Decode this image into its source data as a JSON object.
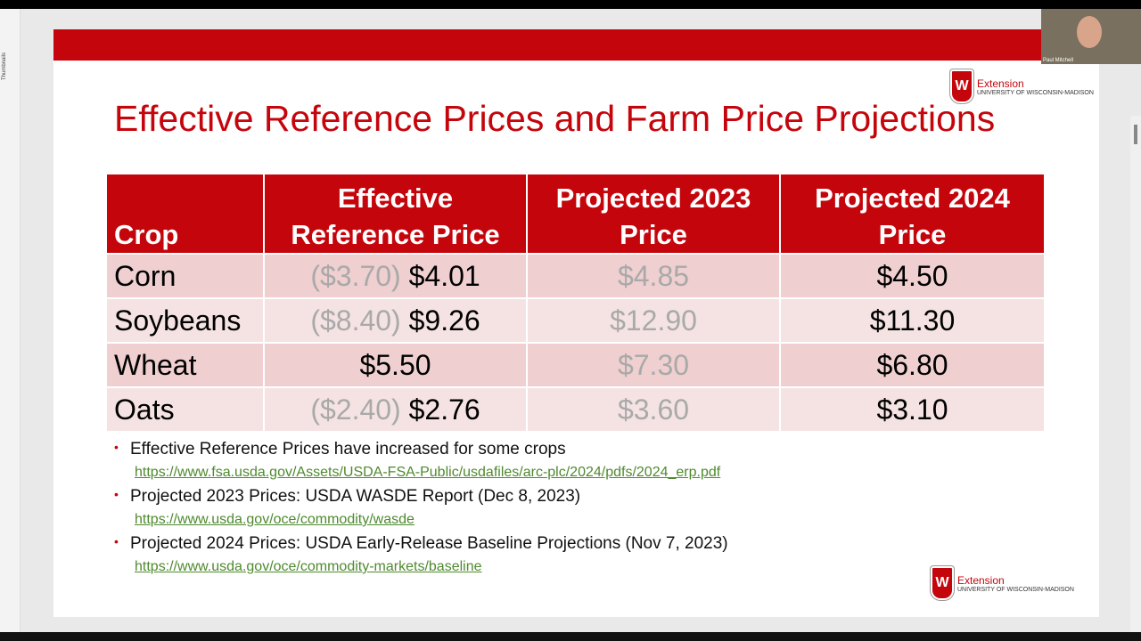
{
  "app": {
    "pane_label": "Thumbnails",
    "participant": "Paul Mitchell"
  },
  "slide": {
    "logo": {
      "name": "Extension",
      "org": "UNIVERSITY OF WISCONSIN-MADISON"
    },
    "title": "Effective Reference Prices and Farm Price Projections",
    "table": {
      "header": [
        "Crop",
        "Effective Reference Price",
        "Projected 2023 Price",
        "Projected 2024 Price"
      ],
      "rows": [
        {
          "crop": "Corn",
          "erp_old": "($3.70)",
          "erp": "$4.01",
          "p2023": "$4.85",
          "p2024": "$4.50"
        },
        {
          "crop": "Soybeans",
          "erp_old": "($8.40)",
          "erp": "$9.26",
          "p2023": "$12.90",
          "p2024": "$11.30"
        },
        {
          "crop": "Wheat",
          "erp": "$5.50",
          "p2023": "$7.30",
          "p2024": "$6.80"
        },
        {
          "crop": "Oats",
          "erp_old": "($2.40)",
          "erp": "$2.76",
          "p2023": "$3.60",
          "p2024": "$3.10"
        }
      ]
    },
    "bullets": [
      {
        "text": "Effective Reference Prices have increased for some crops",
        "link": "https://www.fsa.usda.gov/Assets/USDA-FSA-Public/usdafiles/arc-plc/2024/pdfs/2024_erp.pdf"
      },
      {
        "text": "Projected 2023 Prices: USDA WASDE Report (Dec 8, 2023)",
        "link": "https://www.usda.gov/oce/commodity/wasde"
      },
      {
        "text": "Projected 2024 Prices: USDA Early-Release Baseline Projections (Nov 7, 2023)",
        "link": "https://www.usda.gov/oce/commodity-markets/baseline"
      }
    ]
  }
}
